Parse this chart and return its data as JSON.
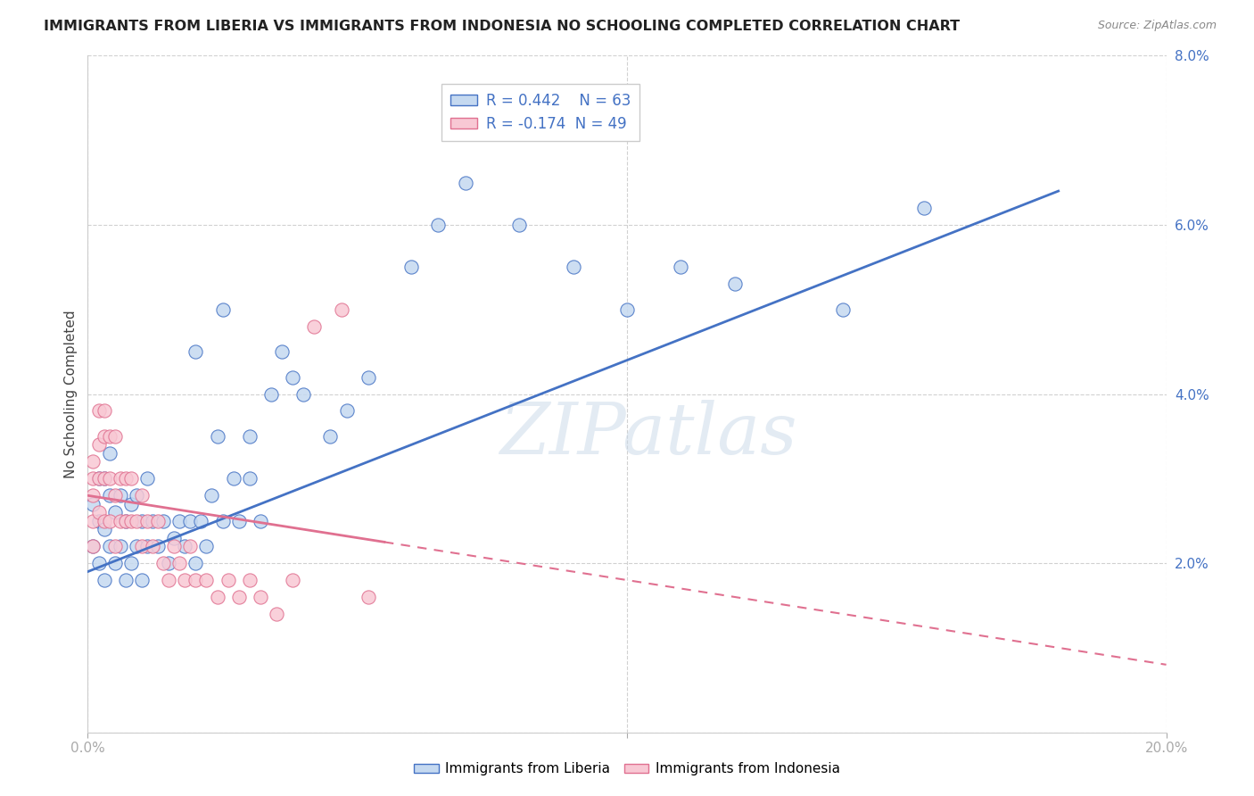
{
  "title": "IMMIGRANTS FROM LIBERIA VS IMMIGRANTS FROM INDONESIA NO SCHOOLING COMPLETED CORRELATION CHART",
  "source": "Source: ZipAtlas.com",
  "ylabel": "No Schooling Completed",
  "xlim": [
    0,
    0.2
  ],
  "ylim": [
    0,
    0.08
  ],
  "xtick_positions": [
    0.0,
    0.1,
    0.2
  ],
  "xtick_labels": [
    "0.0%",
    "",
    "20.0%"
  ],
  "ytick_positions": [
    0.0,
    0.02,
    0.04,
    0.06,
    0.08
  ],
  "ytick_labels": [
    "",
    "2.0%",
    "4.0%",
    "6.0%",
    "8.0%"
  ],
  "legend_label1": "Immigrants from Liberia",
  "legend_label2": "Immigrants from Indonesia",
  "R1": 0.442,
  "N1": 63,
  "R2": -0.174,
  "N2": 49,
  "color1_face": "#c5d9f0",
  "color1_edge": "#4472c4",
  "color2_face": "#f8c8d4",
  "color2_edge": "#e07090",
  "line_color1": "#4472c4",
  "line_color2": "#e07090",
  "watermark": "ZIPatlas",
  "background_color": "#ffffff",
  "grid_color": "#cccccc",
  "lib_line_x0": 0.0,
  "lib_line_y0": 0.019,
  "lib_line_x1": 0.18,
  "lib_line_y1": 0.064,
  "ind_line_x0": 0.0,
  "ind_line_y0": 0.028,
  "ind_line_solid_x1": 0.055,
  "ind_line_x1": 0.2,
  "ind_line_y1": 0.008,
  "liberia_x": [
    0.001,
    0.001,
    0.002,
    0.002,
    0.002,
    0.003,
    0.003,
    0.003,
    0.004,
    0.004,
    0.004,
    0.005,
    0.005,
    0.006,
    0.006,
    0.007,
    0.007,
    0.008,
    0.008,
    0.009,
    0.009,
    0.01,
    0.01,
    0.011,
    0.011,
    0.012,
    0.013,
    0.014,
    0.015,
    0.016,
    0.017,
    0.018,
    0.019,
    0.02,
    0.021,
    0.022,
    0.023,
    0.024,
    0.025,
    0.027,
    0.028,
    0.03,
    0.032,
    0.034,
    0.036,
    0.038,
    0.04,
    0.045,
    0.048,
    0.052,
    0.06,
    0.065,
    0.07,
    0.08,
    0.09,
    0.1,
    0.11,
    0.12,
    0.14,
    0.155,
    0.02,
    0.025,
    0.03
  ],
  "liberia_y": [
    0.022,
    0.027,
    0.02,
    0.025,
    0.03,
    0.018,
    0.024,
    0.03,
    0.022,
    0.028,
    0.033,
    0.02,
    0.026,
    0.022,
    0.028,
    0.018,
    0.025,
    0.02,
    0.027,
    0.022,
    0.028,
    0.018,
    0.025,
    0.022,
    0.03,
    0.025,
    0.022,
    0.025,
    0.02,
    0.023,
    0.025,
    0.022,
    0.025,
    0.02,
    0.025,
    0.022,
    0.028,
    0.035,
    0.025,
    0.03,
    0.025,
    0.035,
    0.025,
    0.04,
    0.045,
    0.042,
    0.04,
    0.035,
    0.038,
    0.042,
    0.055,
    0.06,
    0.065,
    0.06,
    0.055,
    0.05,
    0.055,
    0.053,
    0.05,
    0.062,
    0.045,
    0.05,
    0.03
  ],
  "indonesia_x": [
    0.001,
    0.001,
    0.001,
    0.001,
    0.001,
    0.002,
    0.002,
    0.002,
    0.002,
    0.003,
    0.003,
    0.003,
    0.003,
    0.004,
    0.004,
    0.004,
    0.005,
    0.005,
    0.005,
    0.006,
    0.006,
    0.007,
    0.007,
    0.008,
    0.008,
    0.009,
    0.01,
    0.01,
    0.011,
    0.012,
    0.013,
    0.014,
    0.015,
    0.016,
    0.017,
    0.018,
    0.019,
    0.02,
    0.022,
    0.024,
    0.026,
    0.028,
    0.03,
    0.032,
    0.035,
    0.038,
    0.042,
    0.047,
    0.052
  ],
  "indonesia_y": [
    0.028,
    0.03,
    0.032,
    0.025,
    0.022,
    0.026,
    0.03,
    0.034,
    0.038,
    0.025,
    0.03,
    0.035,
    0.038,
    0.025,
    0.03,
    0.035,
    0.022,
    0.028,
    0.035,
    0.025,
    0.03,
    0.025,
    0.03,
    0.025,
    0.03,
    0.025,
    0.022,
    0.028,
    0.025,
    0.022,
    0.025,
    0.02,
    0.018,
    0.022,
    0.02,
    0.018,
    0.022,
    0.018,
    0.018,
    0.016,
    0.018,
    0.016,
    0.018,
    0.016,
    0.014,
    0.018,
    0.048,
    0.05,
    0.016
  ]
}
